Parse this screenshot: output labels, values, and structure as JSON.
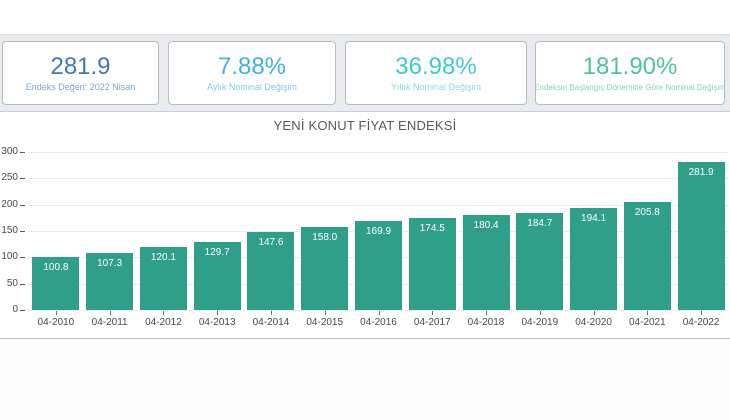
{
  "cards": [
    {
      "value": "281.9",
      "label": "Endeks Değeri: 2022 Nisan",
      "value_color": "#3d78b6",
      "label_color": "#78a6d4"
    },
    {
      "value": "7.88%",
      "label": "Aylık Nominal Değişim",
      "value_color": "#42b0e0",
      "label_color": "#83c9e9"
    },
    {
      "value": "36.98%",
      "label": "Yıllık Nominal Değişim",
      "value_color": "#41c9cf",
      "label_color": "#89dadd"
    },
    {
      "value": "181.90%",
      "label": "Endeksin Başlangıç Dönemine Göre Nominal Değişim",
      "value_color": "#4ec497",
      "label_color": "#87d3b2"
    }
  ],
  "chart_data": {
    "type": "bar",
    "title": "YENİ KONUT FİYAT ENDEKSİ",
    "categories": [
      "04-2010",
      "04-2011",
      "04-2012",
      "04-2013",
      "04-2014",
      "04-2015",
      "04-2016",
      "04-2017",
      "04-2018",
      "04-2019",
      "04-2020",
      "04-2021",
      "04-2022"
    ],
    "values": [
      100.8,
      107.3,
      120.1,
      129.7,
      147.6,
      158.0,
      169.9,
      174.5,
      180.4,
      184.7,
      194.1,
      205.8,
      281.9
    ],
    "xlabel": "",
    "ylabel": "",
    "ylim": [
      0,
      300
    ],
    "ytick_step": 50,
    "grid": "dotted-horizontal",
    "legend": "none",
    "bar_color": "#2f9f89",
    "value_label_color": "#ffffff"
  }
}
